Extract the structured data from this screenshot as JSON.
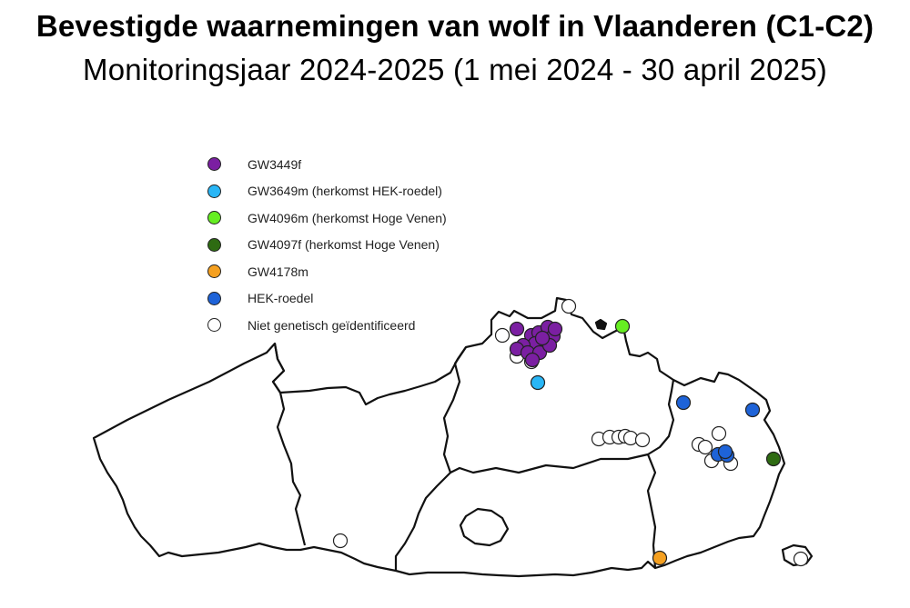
{
  "title": "Bevestigde waarnemingen van wolf in Vlaanderen (C1-C2)",
  "subtitle": "Monitoringsjaar 2024-2025 (1 mei 2024 - 30 april 2025)",
  "legend": [
    {
      "key": "gw3449f",
      "label": "GW3449f",
      "color": "#7b1fa2"
    },
    {
      "key": "gw3649m",
      "label": "GW3649m (herkomst HEK-roedel)",
      "color": "#29b6f6"
    },
    {
      "key": "gw4096m",
      "label": "GW4096m (herkomst Hoge Venen)",
      "color": "#66ee22"
    },
    {
      "key": "gw4097f",
      "label": "GW4097f (herkomst Hoge Venen)",
      "color": "#2e6b12"
    },
    {
      "key": "gw4178m",
      "label": "GW4178m",
      "color": "#f5a020"
    },
    {
      "key": "hek",
      "label": "HEK-roedel",
      "color": "#1e63d8"
    },
    {
      "key": "none",
      "label": "Niet genetisch geïdentificeerd",
      "color": "#ffffff"
    }
  ]
}
